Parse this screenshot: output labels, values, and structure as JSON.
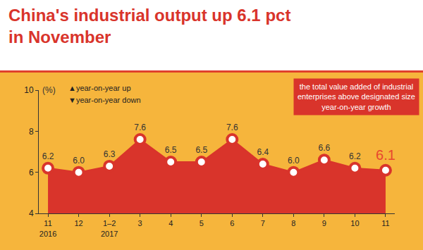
{
  "chart_data": {
    "type": "area",
    "title": "China's industrial output up 6.1 pct\nin November",
    "categories": [
      "11\n2016",
      "12",
      "1–2\n2017",
      "3",
      "4",
      "5",
      "6",
      "7",
      "8",
      "9",
      "10",
      "11"
    ],
    "values": [
      6.2,
      6.0,
      6.3,
      7.6,
      6.5,
      6.5,
      7.6,
      6.4,
      6.0,
      6.6,
      6.2,
      6.1
    ],
    "value_labels": [
      "6.2",
      "6.0",
      "6.3",
      "7.6",
      "6.5",
      "6.5",
      "7.6",
      "6.4",
      "6.0",
      "6.6",
      "6.2",
      "6.1"
    ],
    "color": "#d9342b",
    "ylim": [
      4,
      10
    ],
    "yticks": [
      4,
      6,
      8,
      10
    ],
    "y_label": "(%)",
    "grid": false,
    "data_labels": true,
    "marker": "circle",
    "annotations": [
      "▲year-on-year up",
      "▼year-on-year down"
    ],
    "caption": "the total value added of industrial\nenterprises above designated size\nyear-on-year growth"
  }
}
